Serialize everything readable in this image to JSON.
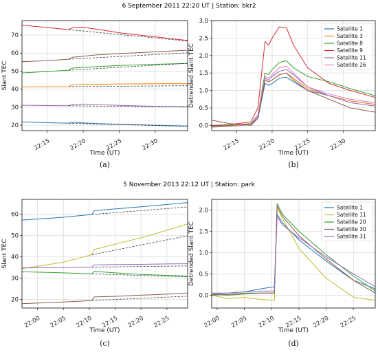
{
  "figure": {
    "row1_title": "6 September 2011 22:20 UT | Station: bkr2",
    "row2_title": "5 November 2013 22:12 UT | Station: park"
  },
  "chart_data": [
    {
      "id": "a",
      "type": "line",
      "caption": "(a)",
      "xlabel": "Time (UT)",
      "ylabel": "Slant TEC",
      "x_ticks": [
        "22:15",
        "22:20",
        "22:25",
        "22:30"
      ],
      "xlim": [
        "22:11.5",
        "22:34.5"
      ],
      "ylim": [
        17,
        78
      ],
      "y_ticks": [
        20,
        30,
        40,
        50,
        60,
        70
      ],
      "grid": true,
      "series": [
        {
          "color": "#1f77b4",
          "x": [
            "22:11.5",
            "22:15",
            "22:18",
            "22:18.5",
            "22:20",
            "22:22",
            "22:25",
            "22:30",
            "22:34.5"
          ],
          "y": [
            21.8,
            21.4,
            21.1,
            21.6,
            21.3,
            20.9,
            20.5,
            20.0,
            19.5
          ]
        },
        {
          "color": "#ff7f0e",
          "x": [
            "22:11.5",
            "22:15",
            "22:18",
            "22:18.5",
            "22:20",
            "22:22",
            "22:25",
            "22:30",
            "22:34.5"
          ],
          "y": [
            41.2,
            41.3,
            41.4,
            42.4,
            42.6,
            42.7,
            42.9,
            43.0,
            43.0
          ]
        },
        {
          "color": "#2ca02c",
          "x": [
            "22:11.5",
            "22:15",
            "22:18",
            "22:18.5",
            "22:20",
            "22:22",
            "22:25",
            "22:30",
            "22:34.5"
          ],
          "y": [
            49.0,
            49.8,
            50.5,
            51.7,
            52.1,
            52.5,
            53.1,
            53.8,
            54.3
          ]
        },
        {
          "color": "#d62728",
          "x": [
            "22:11.5",
            "22:15",
            "22:18",
            "22:18.5",
            "22:20",
            "22:22",
            "22:25",
            "22:30",
            "22:34.5"
          ],
          "y": [
            75.5,
            74.2,
            73.0,
            74.0,
            74.3,
            73.2,
            71.3,
            69.0,
            67.0
          ]
        },
        {
          "color": "#9467bd",
          "x": [
            "22:11.5",
            "22:15",
            "22:18",
            "22:18.5",
            "22:20",
            "22:22",
            "22:25",
            "22:30",
            "22:34.5"
          ],
          "y": [
            31.1,
            30.9,
            30.8,
            31.5,
            31.7,
            31.4,
            31.0,
            30.5,
            30.2
          ]
        },
        {
          "color": "#8c564b",
          "x": [
            "22:11.5",
            "22:15",
            "22:18",
            "22:18.5",
            "22:20",
            "22:22",
            "22:25",
            "22:30",
            "22:34.5"
          ],
          "y": [
            55.2,
            55.8,
            56.6,
            57.7,
            58.3,
            59.0,
            59.7,
            60.7,
            61.6
          ]
        }
      ]
    },
    {
      "id": "b",
      "type": "line",
      "caption": "(b)",
      "xlabel": "Time (UT)",
      "ylabel": "Detrended Slant TEC",
      "x_ticks": [
        "22:15",
        "22:20",
        "22:25",
        "22:30"
      ],
      "xlim": [
        "22:11.5",
        "22:34.5"
      ],
      "ylim": [
        -0.15,
        3.0
      ],
      "y_ticks": [
        0.0,
        0.5,
        1.0,
        1.5,
        2.0,
        2.5,
        3.0
      ],
      "grid": true,
      "legend": "top-right",
      "series": [
        {
          "name": "Satellite 1",
          "color": "#1f77b4",
          "x": [
            "22:11.5",
            "22:14",
            "22:17",
            "22:18",
            "22:19",
            "22:19.5",
            "22:20",
            "22:21",
            "22:22",
            "22:23",
            "22:25",
            "22:28",
            "22:31",
            "22:34.5"
          ],
          "y": [
            -0.03,
            -0.02,
            0.02,
            0.2,
            1.2,
            1.15,
            1.2,
            1.35,
            1.38,
            1.25,
            1.0,
            0.85,
            0.7,
            0.6
          ]
        },
        {
          "name": "Satellite 3",
          "color": "#ff7f0e",
          "x": [
            "22:11.5",
            "22:14",
            "22:17",
            "22:18",
            "22:19",
            "22:19.5",
            "22:20",
            "22:21",
            "22:22",
            "22:23",
            "22:25",
            "22:28",
            "22:31",
            "22:34.5"
          ],
          "y": [
            -0.02,
            -0.01,
            0.03,
            0.25,
            1.3,
            1.25,
            1.3,
            1.45,
            1.5,
            1.35,
            1.05,
            0.85,
            0.7,
            0.6
          ]
        },
        {
          "name": "Satellite 8",
          "color": "#2ca02c",
          "x": [
            "22:11.5",
            "22:14",
            "22:17",
            "22:18",
            "22:19",
            "22:19.5",
            "22:20",
            "22:21",
            "22:22",
            "22:23",
            "22:25",
            "22:28",
            "22:31",
            "22:34.5"
          ],
          "y": [
            -0.02,
            0.0,
            0.05,
            0.3,
            1.5,
            1.45,
            1.6,
            1.8,
            1.85,
            1.65,
            1.4,
            1.25,
            1.05,
            0.85
          ]
        },
        {
          "name": "Satellite 9",
          "color": "#d62728",
          "x": [
            "22:11.5",
            "22:14",
            "22:17",
            "22:18",
            "22:19",
            "22:19.5",
            "22:20",
            "22:21",
            "22:22",
            "22:23",
            "22:25",
            "22:28",
            "22:31",
            "22:34.5"
          ],
          "y": [
            0.0,
            0.02,
            0.1,
            0.5,
            2.4,
            2.3,
            2.5,
            2.82,
            2.8,
            2.3,
            1.65,
            1.2,
            1.0,
            0.8
          ]
        },
        {
          "name": "Satellite 11",
          "color": "#9467bd",
          "x": [
            "22:11.5",
            "22:14",
            "22:17",
            "22:18",
            "22:19",
            "22:19.5",
            "22:20",
            "22:21",
            "22:22",
            "22:23",
            "22:25",
            "22:28",
            "22:31",
            "22:34.5"
          ],
          "y": [
            -0.05,
            -0.03,
            0.02,
            0.25,
            1.35,
            1.3,
            1.4,
            1.55,
            1.6,
            1.45,
            1.1,
            0.85,
            0.65,
            0.55
          ]
        },
        {
          "name": "Satellite 26",
          "color": "#e377c2",
          "x": [
            "22:11.5",
            "22:14",
            "22:17",
            "22:18",
            "22:19",
            "22:19.5",
            "22:20",
            "22:21",
            "22:22",
            "22:23",
            "22:25",
            "22:28",
            "22:31",
            "22:34.5"
          ],
          "y": [
            -0.05,
            -0.03,
            0.02,
            0.3,
            1.4,
            1.35,
            1.45,
            1.65,
            1.7,
            1.5,
            1.1,
            0.9,
            0.75,
            0.65
          ]
        },
        {
          "color": "#8c564b",
          "x": [
            "22:11.5",
            "22:14",
            "22:17",
            "22:18",
            "22:19",
            "22:19.5",
            "22:20",
            "22:21",
            "22:22",
            "22:23",
            "22:25",
            "22:28",
            "22:31",
            "22:34.5"
          ],
          "y": [
            0.15,
            0.05,
            0.0,
            0.2,
            1.3,
            1.25,
            1.3,
            1.45,
            1.5,
            1.3,
            1.0,
            0.75,
            0.5,
            0.38
          ]
        }
      ]
    },
    {
      "id": "c",
      "type": "line",
      "caption": "(c)",
      "xlabel": "Time (UT)",
      "ylabel": "Slant TEC",
      "x_ticks": [
        "22:00",
        "22:05",
        "22:10",
        "22:15",
        "22:20",
        "22:25"
      ],
      "xlim": [
        "21:57",
        "22:29"
      ],
      "ylim": [
        16,
        67
      ],
      "y_ticks": [
        20,
        30,
        40,
        50,
        60
      ],
      "grid": true,
      "series": [
        {
          "color": "#1f77b4",
          "x": [
            "21:57",
            "22:05",
            "22:10.5",
            "22:11",
            "22:15",
            "22:20",
            "22:25",
            "22:29"
          ],
          "y": [
            57.3,
            58.6,
            59.9,
            61.7,
            62.5,
            63.5,
            64.6,
            65.5
          ]
        },
        {
          "color": "#bcbd22",
          "x": [
            "21:57",
            "22:05",
            "22:10.5",
            "22:11",
            "22:15",
            "22:20",
            "22:25",
            "22:29"
          ],
          "y": [
            34.5,
            37.5,
            41.0,
            43.5,
            46.0,
            49.0,
            52.5,
            55.5
          ]
        },
        {
          "color": "#9467bd",
          "x": [
            "21:57",
            "22:05",
            "22:10.5",
            "22:11",
            "22:15",
            "22:20",
            "22:25",
            "22:29"
          ],
          "y": [
            34.8,
            35.0,
            35.2,
            36.2,
            36.4,
            36.5,
            36.7,
            36.8
          ]
        },
        {
          "color": "#2ca02c",
          "x": [
            "21:57",
            "22:05",
            "22:10.5",
            "22:11",
            "22:15",
            "22:20",
            "22:25",
            "22:29"
          ],
          "y": [
            33.0,
            32.5,
            32.0,
            33.2,
            32.5,
            31.8,
            31.3,
            31.0
          ]
        },
        {
          "color": "#8c564b",
          "x": [
            "21:57",
            "22:05",
            "22:10.5",
            "22:11",
            "22:15",
            "22:20",
            "22:25",
            "22:29"
          ],
          "y": [
            18.0,
            18.8,
            19.5,
            21.2,
            21.5,
            22.0,
            22.5,
            23.0
          ]
        }
      ]
    },
    {
      "id": "d",
      "type": "line",
      "caption": "(d)",
      "xlabel": "Time (UT)",
      "ylabel": "Detrended Slant TEC",
      "x_ticks": [
        "22:00",
        "22:05",
        "22:10",
        "22:15",
        "22:20",
        "22:25"
      ],
      "xlim": [
        "21:59",
        "22:29"
      ],
      "ylim": [
        -0.3,
        2.25
      ],
      "y_ticks": [
        0.0,
        0.5,
        1.0,
        1.5,
        2.0
      ],
      "grid": true,
      "legend": "top-right",
      "series": [
        {
          "name": "Satellite 1",
          "color": "#1f77b4",
          "x": [
            "21:59",
            "22:02",
            "22:05",
            "22:08",
            "22:10.5",
            "22:11",
            "22:12",
            "22:15",
            "22:20",
            "22:25",
            "22:29"
          ],
          "y": [
            0.02,
            0.05,
            0.08,
            0.15,
            0.2,
            1.9,
            1.7,
            1.3,
            0.8,
            0.35,
            0.15
          ]
        },
        {
          "name": "Satellite 11",
          "color": "#bcbd22",
          "x": [
            "21:59",
            "22:02",
            "22:05",
            "22:08",
            "22:10.5",
            "22:11",
            "22:12",
            "22:15",
            "22:20",
            "22:25",
            "22:29"
          ],
          "y": [
            0.0,
            -0.08,
            -0.05,
            -0.1,
            -0.12,
            2.05,
            1.8,
            1.1,
            0.4,
            -0.05,
            -0.12
          ]
        },
        {
          "name": "Satellite 20",
          "color": "#2ca02c",
          "x": [
            "21:59",
            "22:02",
            "22:05",
            "22:08",
            "22:10.5",
            "22:11",
            "22:12",
            "22:15",
            "22:20",
            "22:25",
            "22:29"
          ],
          "y": [
            0.0,
            0.02,
            0.05,
            0.05,
            0.05,
            2.15,
            1.9,
            1.5,
            0.95,
            0.45,
            0.1
          ]
        },
        {
          "name": "Satellite 30",
          "color": "#8c564b",
          "x": [
            "21:59",
            "22:02",
            "22:05",
            "22:08",
            "22:10.5",
            "22:11",
            "22:12",
            "22:15",
            "22:20",
            "22:25",
            "22:29"
          ],
          "y": [
            0.02,
            0.0,
            0.03,
            0.05,
            0.05,
            2.1,
            1.85,
            1.4,
            0.85,
            0.35,
            0.05
          ]
        },
        {
          "name": "Satellite 31",
          "color": "#9467bd",
          "x": [
            "21:59",
            "22:02",
            "22:05",
            "22:08",
            "22:10.5",
            "22:11",
            "22:12",
            "22:15",
            "22:20",
            "22:25",
            "22:29"
          ],
          "y": [
            0.05,
            0.05,
            0.08,
            0.1,
            0.1,
            1.85,
            1.65,
            1.35,
            0.9,
            0.5,
            0.2
          ]
        }
      ]
    }
  ]
}
